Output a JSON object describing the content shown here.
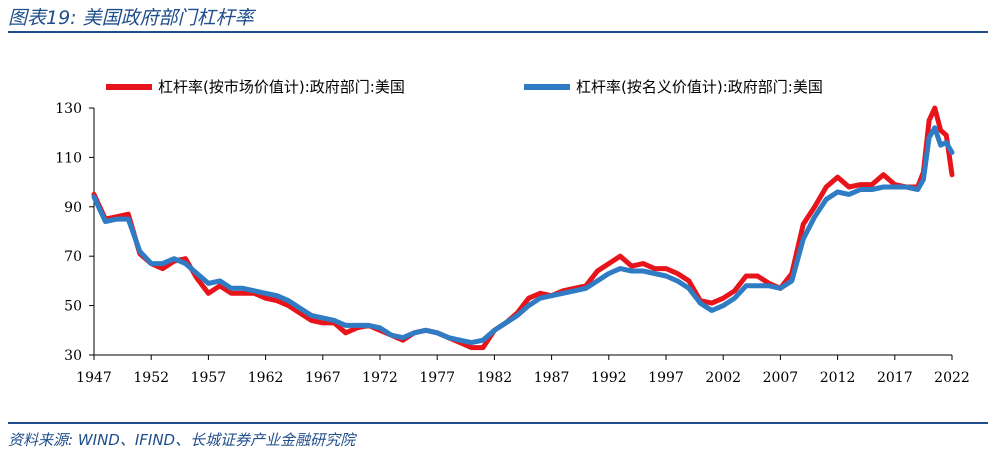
{
  "header": {
    "title": "图表19:  美国政府部门杠杆率",
    "source": "资料来源: WIND、IFIND、长城证券产业金融研究院"
  },
  "colors": {
    "series_market": "#e8141b",
    "series_nominal": "#2f7cc4",
    "rule": "#1f4e8c"
  },
  "chart_data": {
    "type": "line",
    "title": "",
    "xlabel": "",
    "ylabel": "",
    "xlim": [
      1947,
      2022
    ],
    "ylim": [
      30,
      130
    ],
    "x_ticks": [
      1947,
      1952,
      1957,
      1962,
      1967,
      1972,
      1977,
      1982,
      1987,
      1992,
      1997,
      2002,
      2007,
      2012,
      2017,
      2022
    ],
    "y_ticks": [
      30,
      50,
      70,
      90,
      110,
      130
    ],
    "grid": false,
    "legend": "top",
    "series": [
      {
        "name": "杠杆率(按市场价值计):政府部门:美国",
        "color": "#e8141b",
        "x": [
          1947,
          1948,
          1949,
          1950,
          1951,
          1952,
          1953,
          1954,
          1955,
          1956,
          1957,
          1958,
          1959,
          1960,
          1961,
          1962,
          1963,
          1964,
          1965,
          1966,
          1967,
          1968,
          1969,
          1970,
          1971,
          1972,
          1973,
          1974,
          1975,
          1976,
          1977,
          1978,
          1979,
          1980,
          1981,
          1982,
          1983,
          1984,
          1985,
          1986,
          1987,
          1988,
          1989,
          1990,
          1991,
          1992,
          1993,
          1994,
          1995,
          1996,
          1997,
          1998,
          1999,
          2000,
          2001,
          2002,
          2003,
          2004,
          2005,
          2006,
          2007,
          2008,
          2009,
          2010,
          2011,
          2012,
          2013,
          2014,
          2015,
          2016,
          2017,
          2018,
          2019,
          2019.5,
          2020,
          2020.5,
          2021,
          2021.5,
          2022
        ],
        "y": [
          95,
          85,
          86,
          87,
          71,
          67,
          65,
          68,
          69,
          61,
          55,
          58,
          55,
          55,
          55,
          53,
          52,
          50,
          47,
          44,
          43,
          43,
          39,
          41,
          42,
          40,
          38,
          36,
          39,
          40,
          39,
          37,
          35,
          33,
          33,
          40,
          43,
          47,
          53,
          55,
          54,
          56,
          57,
          58,
          64,
          67,
          70,
          66,
          67,
          65,
          65,
          63,
          60,
          52,
          51,
          53,
          56,
          62,
          62,
          59,
          57,
          63,
          83,
          90,
          98,
          102,
          98,
          99,
          99,
          103,
          99,
          98,
          98,
          104,
          125,
          130,
          121,
          119,
          103
        ]
      },
      {
        "name": "杠杆率(按名义价值计):政府部门:美国",
        "color": "#2f7cc4",
        "x": [
          1947,
          1948,
          1949,
          1950,
          1951,
          1952,
          1953,
          1954,
          1955,
          1956,
          1957,
          1958,
          1959,
          1960,
          1961,
          1962,
          1963,
          1964,
          1965,
          1966,
          1967,
          1968,
          1969,
          1970,
          1971,
          1972,
          1973,
          1974,
          1975,
          1976,
          1977,
          1978,
          1979,
          1980,
          1981,
          1982,
          1983,
          1984,
          1985,
          1986,
          1987,
          1988,
          1989,
          1990,
          1991,
          1992,
          1993,
          1994,
          1995,
          1996,
          1997,
          1998,
          1999,
          2000,
          2001,
          2002,
          2003,
          2004,
          2005,
          2006,
          2007,
          2008,
          2009,
          2010,
          2011,
          2012,
          2013,
          2014,
          2015,
          2016,
          2017,
          2018,
          2019,
          2019.5,
          2020,
          2020.5,
          2021,
          2021.5,
          2022
        ],
        "y": [
          94,
          84,
          85,
          85,
          72,
          67,
          67,
          69,
          67,
          63,
          59,
          60,
          57,
          57,
          56,
          55,
          54,
          52,
          49,
          46,
          45,
          44,
          42,
          42,
          42,
          41,
          38,
          37,
          39,
          40,
          39,
          37,
          36,
          35,
          36,
          40,
          43,
          46,
          50,
          53,
          54,
          55,
          56,
          57,
          60,
          63,
          65,
          64,
          64,
          63,
          62,
          60,
          57,
          51,
          48,
          50,
          53,
          58,
          58,
          58,
          57,
          60,
          77,
          86,
          93,
          96,
          95,
          97,
          97,
          98,
          98,
          98,
          97,
          101,
          118,
          122,
          115,
          116,
          112
        ]
      }
    ]
  }
}
